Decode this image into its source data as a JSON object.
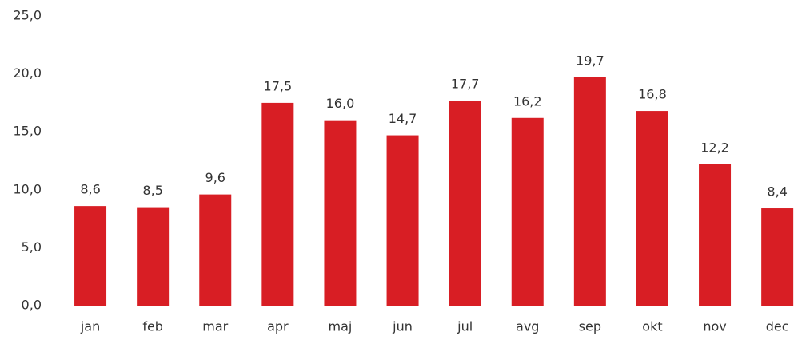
{
  "chart_data": {
    "type": "bar",
    "categories": [
      "jan",
      "feb",
      "mar",
      "apr",
      "maj",
      "jun",
      "jul",
      "avg",
      "sep",
      "okt",
      "nov",
      "dec"
    ],
    "values": [
      8.6,
      8.5,
      9.6,
      17.5,
      16.0,
      14.7,
      17.7,
      16.2,
      19.7,
      16.8,
      12.2,
      8.4
    ],
    "value_labels": [
      "8,6",
      "8,5",
      "9,6",
      "17,5",
      "16,0",
      "14,7",
      "17,7",
      "16,2",
      "19,7",
      "16,8",
      "12,2",
      "8,4"
    ],
    "color": "#d81e24",
    "ylim": [
      0,
      25
    ],
    "yticks": [
      {
        "value": 0,
        "label": "0,0"
      },
      {
        "value": 5,
        "label": "5,0"
      },
      {
        "value": 10,
        "label": "10,0"
      },
      {
        "value": 15,
        "label": "15,0"
      },
      {
        "value": 20,
        "label": "20,0"
      },
      {
        "value": 25,
        "label": "25,0"
      }
    ],
    "grid": false
  }
}
